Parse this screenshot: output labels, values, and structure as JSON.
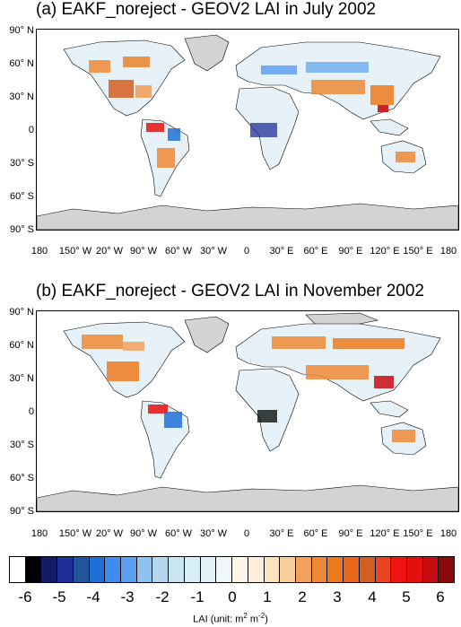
{
  "panels": [
    {
      "id": "a",
      "title": "(a) EAKF_noreject - GEOV2 LAI in July 2002",
      "ylabels": [
        "90° N",
        "60° N",
        "30° N",
        "0",
        "30° S",
        "60° S",
        "90° S"
      ],
      "xlabels": [
        "180",
        "150° W",
        "20° W",
        "90° W",
        "60° W",
        "30° W",
        "0",
        "30° E",
        "60° E",
        "90° E",
        "120° E",
        "150° E",
        "180"
      ]
    },
    {
      "id": "b",
      "title": "(b) EAKF_noreject - GEOV2 LAI in November 2002",
      "ylabels": [
        "90° N",
        "60° N",
        "30° N",
        "0",
        "30° S",
        "60° S",
        "90° S"
      ],
      "xlabels": [
        "180",
        "150° W",
        "20° W",
        "90° W",
        "60° W",
        "30° W",
        "0",
        "30° E",
        "60° E",
        "90° E",
        "120° E",
        "150° E",
        "180"
      ]
    }
  ],
  "colorbar": {
    "colors": [
      "#ffffff",
      "#000000",
      "#141c6a",
      "#1f2f9a",
      "#20559c",
      "#1e6fd6",
      "#3e8ef2",
      "#5aa2ee",
      "#8ec3ef",
      "#b3d6ee",
      "#c9e6f0",
      "#d6eef4",
      "#e4f1f8",
      "#eef8fb",
      "#fdf6e6",
      "#fdeedb",
      "#fde2bd",
      "#f8ce9a",
      "#f2a15e",
      "#ee8a36",
      "#eb7a1f",
      "#e8661b",
      "#d25f1e",
      "#ea4424",
      "#f01313",
      "#e40f0f",
      "#c70d12",
      "#8a0a0a"
    ],
    "labels": [
      "-6",
      "-5",
      "-4",
      "-3",
      "-2",
      "-1",
      "0",
      "1",
      "2",
      "3",
      "4",
      "5",
      "6"
    ],
    "unit_prefix": "LAI (unit: m",
    "unit_sup1": "2",
    "unit_mid": " m",
    "unit_sup2": "-2",
    "unit_suffix": ")"
  },
  "map_colors": {
    "land_base": "#e7f2f8",
    "ice": "#d3d3d3",
    "ocean": "#ffffff",
    "coast": "#000000"
  }
}
